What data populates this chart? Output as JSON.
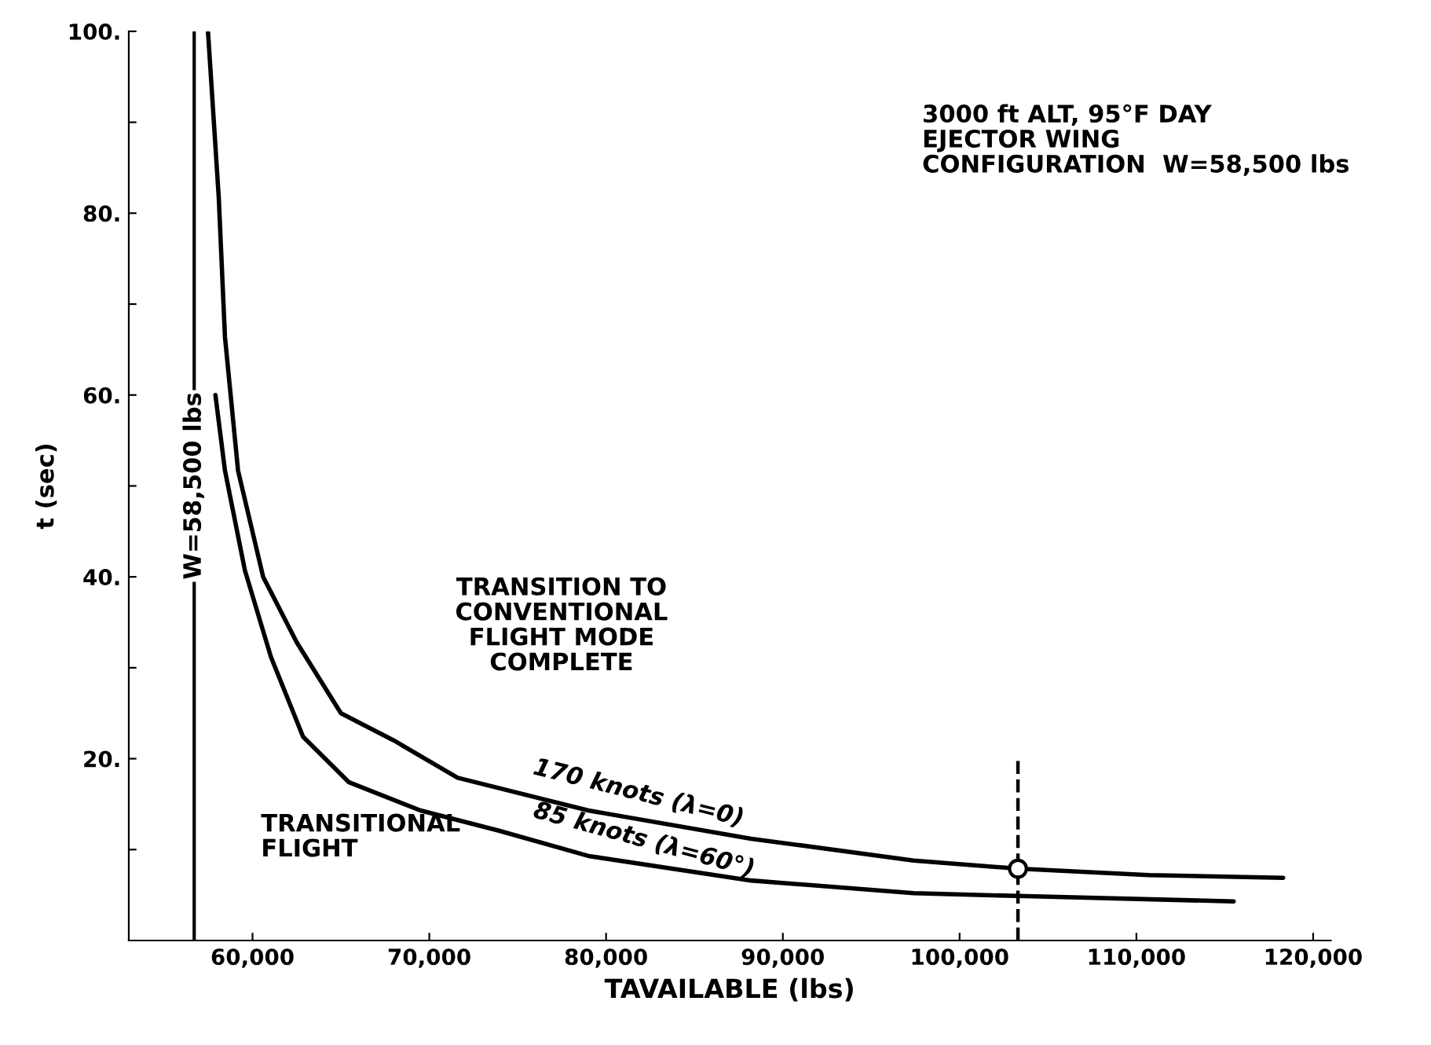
{
  "chart_data": {
    "type": "line",
    "xlabel": "TAVAILABLE (lbs)",
    "ylabel": "t (sec)",
    "xlim": [
      53000,
      121000
    ],
    "ylim": [
      0,
      100
    ],
    "xticks": [
      {
        "value": 60000,
        "label": "60,000"
      },
      {
        "value": 70000,
        "label": "70,000"
      },
      {
        "value": 80000,
        "label": "80,000"
      },
      {
        "value": 90000,
        "label": "90,000"
      },
      {
        "value": 100000,
        "label": "100,000"
      },
      {
        "value": 110000,
        "label": "110,000"
      },
      {
        "value": 120000,
        "label": "120,000"
      }
    ],
    "yticks": [
      {
        "value": 10,
        "label": null
      },
      {
        "value": 20,
        "label": "20."
      },
      {
        "value": 30,
        "label": null
      },
      {
        "value": 40,
        "label": "40."
      },
      {
        "value": 50,
        "label": null
      },
      {
        "value": 60,
        "label": "60."
      },
      {
        "value": 70,
        "label": null
      },
      {
        "value": 80,
        "label": "80."
      },
      {
        "value": 90,
        "label": null
      },
      {
        "value": 100,
        "label": "100."
      }
    ],
    "grid": false,
    "legend": false,
    "marker": "none",
    "line_style": "solid",
    "series": [
      {
        "name": "170 knots (λ=0)",
        "color": "#000000",
        "x": [
          57480,
          58090,
          58440,
          59180,
          60600,
          62500,
          65000,
          68000,
          71600,
          79000,
          88200,
          97400,
          103300,
          110700,
          118300
        ],
        "values": [
          100,
          81.7,
          66.4,
          51.7,
          40,
          32.8,
          25,
          22,
          17.9,
          14.3,
          11.2,
          8.8,
          7.9,
          7.2,
          6.9
        ]
      },
      {
        "name": "85 knots (λ=60°)",
        "color": "#000000",
        "x": [
          57900,
          58440,
          59570,
          61040,
          62860,
          65460,
          69500,
          73900,
          79000,
          88200,
          97400,
          103300,
          115500
        ],
        "values": [
          60,
          51.7,
          40.7,
          31.2,
          22.4,
          17.4,
          14.3,
          12.1,
          9.3,
          6.6,
          5.2,
          4.9,
          4.3
        ]
      },
      {
        "type": "line",
        "line_style": "dashed",
        "color": "#000000",
        "x": [
          103300,
          103300
        ],
        "values": [
          0,
          20
        ]
      },
      {
        "type": "scatter",
        "marker": "circle",
        "color": "#000000",
        "x": [
          103300
        ],
        "values": [
          7.9
        ]
      }
    ],
    "ref_lines": [
      {
        "axis": "x",
        "value": 56700,
        "line_style": "solid",
        "color": "#000000"
      }
    ],
    "annotations": [
      "TRANSITION TO\nCONVENTIONAL\nFLIGHT MODE\nCOMPLETE",
      "TRANSITIONAL\nFLIGHT",
      "3000 ft ALT, 95°F DAY\nEJECTOR WING\nCONFIGURATION  W=58,500 lbs",
      "W=58,500 lbs"
    ]
  }
}
